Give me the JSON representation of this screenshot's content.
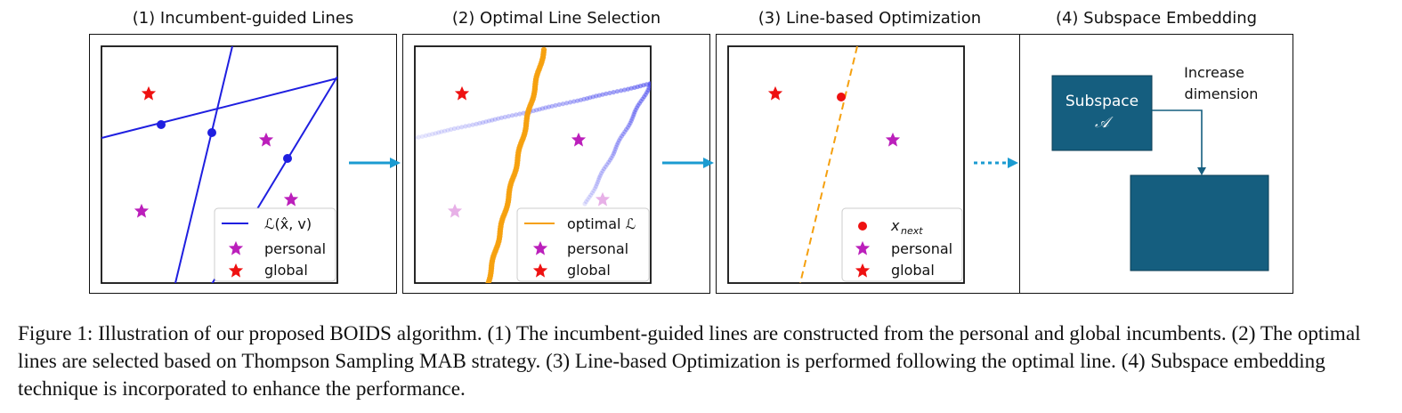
{
  "panels": [
    {
      "title": "(1) Incumbent-guided Lines",
      "legend": [
        "ℒ(x̂, v)",
        "personal",
        "global"
      ]
    },
    {
      "title": "(2) Optimal Line Selection",
      "legend": [
        "optimal ℒ",
        "personal",
        "global"
      ]
    },
    {
      "title": "(3) Line-based Optimization",
      "legend": [
        "x",
        "next",
        "personal",
        "global"
      ]
    },
    {
      "title": "(4) Subspace Embedding",
      "box_label": [
        "Subspace",
        "𝒜"
      ],
      "annotation": [
        "Increase",
        "dimension"
      ]
    }
  ],
  "caption": "Figure 1: Illustration of our proposed BOIDS algorithm. (1) The incumbent-guided lines are constructed from the personal and global incumbents. (2) The optimal lines are selected based on Thompson Sampling MAB strategy. (3) Line-based Optimization is performed following the optimal line. (4) Subspace embedding technique is incorporated to enhance the performance.",
  "colors": {
    "line_blue": "#1f1fe0",
    "optimal_orange": "#f5a00f",
    "personal_star": "#bb1fbb",
    "global_star": "#ee1111",
    "arrow": "#1b9bd1",
    "subspace_fill": "#155e7f"
  }
}
